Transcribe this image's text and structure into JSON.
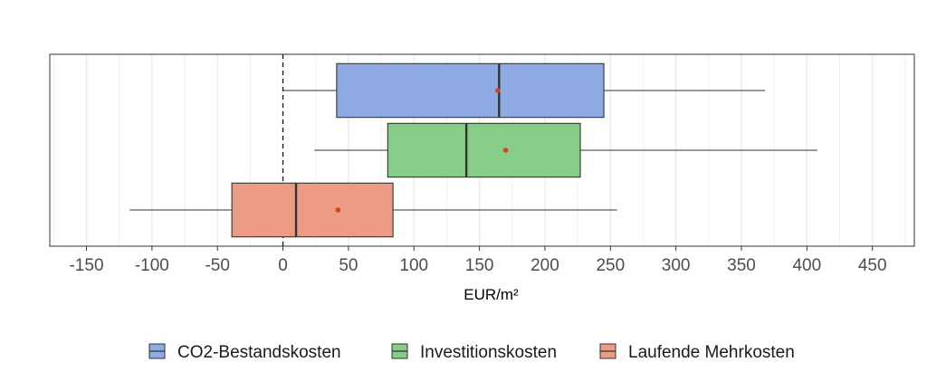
{
  "chart_data": {
    "type": "boxplot",
    "orientation": "horizontal",
    "title": "",
    "xlabel": "EUR/m²",
    "ylabel": "",
    "xlim": [
      -178,
      482
    ],
    "x_ticks": [
      -150,
      -100,
      -50,
      0,
      50,
      100,
      150,
      200,
      250,
      300,
      350,
      400,
      450
    ],
    "x_tick_labels": [
      "-150",
      "-100",
      "-50",
      "0",
      "50",
      "100",
      "150",
      "200",
      "250",
      "300",
      "350",
      "400",
      "450"
    ],
    "reference_line": {
      "x": 0,
      "style": "dashed"
    },
    "grid": true,
    "legend_position": "bottom",
    "series": [
      {
        "name": "CO2-Bestandskosten",
        "color": "#8fabe3",
        "whisker_low": 0,
        "q1": 41,
        "median": 165,
        "q3": 245,
        "whisker_high": 368,
        "mean": 164
      },
      {
        "name": "Investitionskosten",
        "color": "#87cd87",
        "whisker_low": 24,
        "q1": 80,
        "median": 140,
        "q3": 227,
        "whisker_high": 408,
        "mean": 170
      },
      {
        "name": "Laufende Mehrkosten",
        "color": "#ec9b85",
        "whisker_low": -117,
        "q1": -39,
        "median": 10,
        "q3": 84,
        "whisker_high": 255,
        "mean": 42
      }
    ],
    "mean_marker_color": "#d84315"
  }
}
